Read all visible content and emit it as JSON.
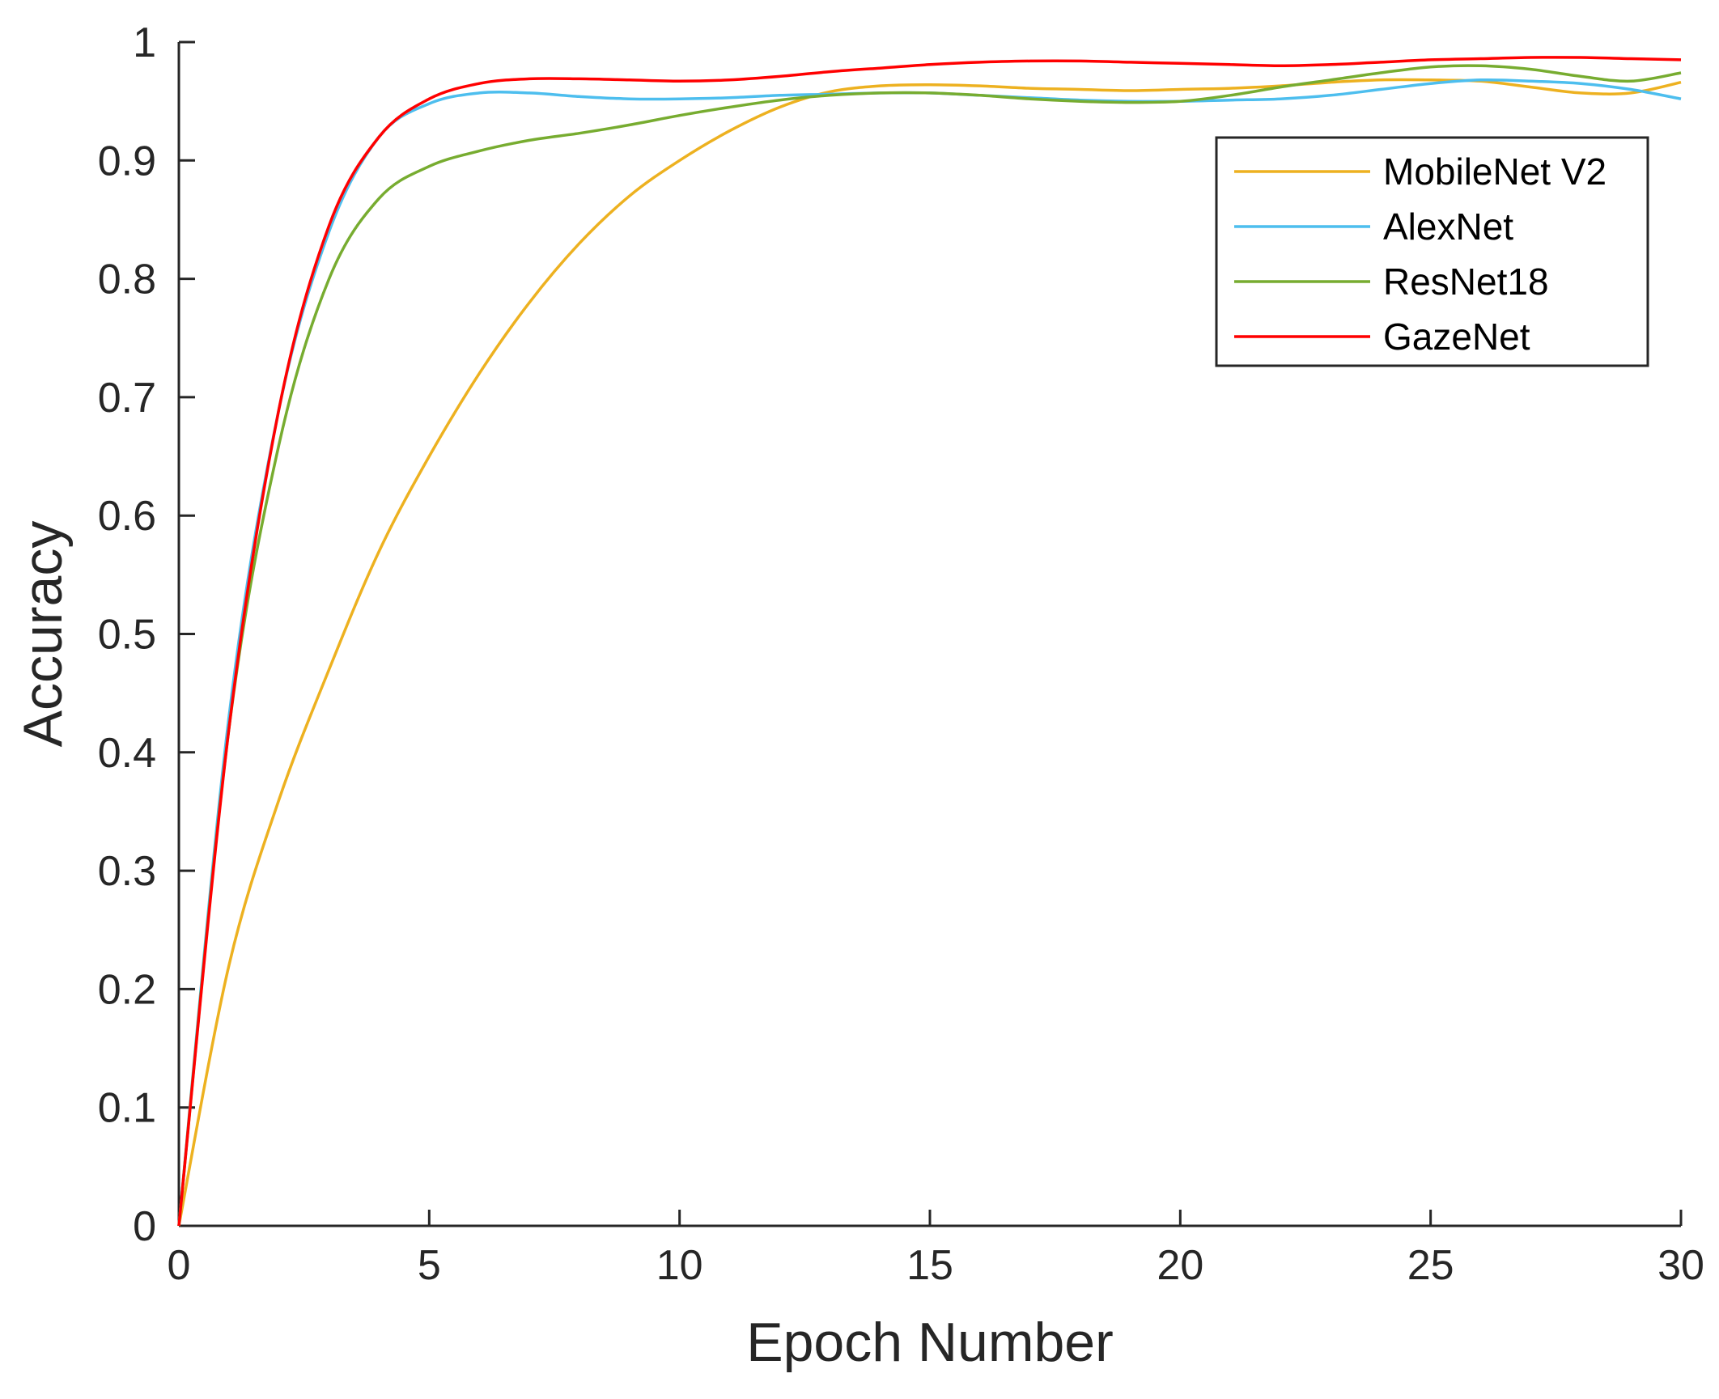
{
  "chart_data": {
    "type": "line",
    "title": "",
    "xlabel": "Epoch Number",
    "ylabel": "Accuracy",
    "xlim": [
      0,
      30
    ],
    "ylim": [
      0,
      1
    ],
    "xticks": [
      "0",
      "5",
      "10",
      "15",
      "20",
      "25",
      "30"
    ],
    "yticks": [
      "0",
      "0.1",
      "0.2",
      "0.3",
      "0.4",
      "0.5",
      "0.6",
      "0.7",
      "0.8",
      "0.9",
      "1"
    ],
    "grid": false,
    "legend_position": "top-right",
    "series": [
      {
        "name": "MobileNet V2",
        "color": "#EDB120",
        "points": [
          [
            0,
            0
          ],
          [
            1,
            0.22
          ],
          [
            2,
            0.36
          ],
          [
            3,
            0.47
          ],
          [
            4,
            0.57
          ],
          [
            5,
            0.65
          ],
          [
            6,
            0.72
          ],
          [
            7,
            0.78
          ],
          [
            8,
            0.83
          ],
          [
            9,
            0.87
          ],
          [
            10,
            0.9
          ],
          [
            11,
            0.925
          ],
          [
            12,
            0.945
          ],
          [
            13,
            0.958
          ],
          [
            14,
            0.963
          ],
          [
            15,
            0.964
          ],
          [
            16,
            0.963
          ],
          [
            17,
            0.961
          ],
          [
            18,
            0.96
          ],
          [
            19,
            0.959
          ],
          [
            20,
            0.96
          ],
          [
            21,
            0.961
          ],
          [
            22,
            0.963
          ],
          [
            23,
            0.966
          ],
          [
            24,
            0.968
          ],
          [
            25,
            0.968
          ],
          [
            26,
            0.967
          ],
          [
            27,
            0.962
          ],
          [
            28,
            0.957
          ],
          [
            29,
            0.957
          ],
          [
            30,
            0.966
          ]
        ]
      },
      {
        "name": "AlexNet",
        "color": "#4DBEEE",
        "points": [
          [
            0,
            0
          ],
          [
            1,
            0.43
          ],
          [
            2,
            0.69
          ],
          [
            3,
            0.84
          ],
          [
            4,
            0.92
          ],
          [
            5,
            0.948
          ],
          [
            6,
            0.957
          ],
          [
            7,
            0.957
          ],
          [
            8,
            0.954
          ],
          [
            9,
            0.952
          ],
          [
            10,
            0.952
          ],
          [
            11,
            0.953
          ],
          [
            12,
            0.955
          ],
          [
            13,
            0.956
          ],
          [
            14,
            0.957
          ],
          [
            15,
            0.957
          ],
          [
            16,
            0.955
          ],
          [
            17,
            0.953
          ],
          [
            18,
            0.951
          ],
          [
            19,
            0.95
          ],
          [
            20,
            0.95
          ],
          [
            21,
            0.951
          ],
          [
            22,
            0.952
          ],
          [
            23,
            0.955
          ],
          [
            24,
            0.96
          ],
          [
            25,
            0.965
          ],
          [
            26,
            0.968
          ],
          [
            27,
            0.967
          ],
          [
            28,
            0.965
          ],
          [
            29,
            0.96
          ],
          [
            30,
            0.952
          ]
        ]
      },
      {
        "name": "ResNet18",
        "color": "#77AC30",
        "points": [
          [
            0,
            0
          ],
          [
            1,
            0.42
          ],
          [
            2,
            0.66
          ],
          [
            3,
            0.8
          ],
          [
            4,
            0.868
          ],
          [
            5,
            0.895
          ],
          [
            6,
            0.908
          ],
          [
            7,
            0.917
          ],
          [
            8,
            0.923
          ],
          [
            9,
            0.93
          ],
          [
            10,
            0.938
          ],
          [
            11,
            0.945
          ],
          [
            12,
            0.951
          ],
          [
            13,
            0.955
          ],
          [
            14,
            0.957
          ],
          [
            15,
            0.957
          ],
          [
            16,
            0.955
          ],
          [
            17,
            0.952
          ],
          [
            18,
            0.95
          ],
          [
            19,
            0.949
          ],
          [
            20,
            0.95
          ],
          [
            21,
            0.955
          ],
          [
            22,
            0.962
          ],
          [
            23,
            0.968
          ],
          [
            24,
            0.974
          ],
          [
            25,
            0.979
          ],
          [
            26,
            0.98
          ],
          [
            27,
            0.977
          ],
          [
            28,
            0.971
          ],
          [
            29,
            0.967
          ],
          [
            30,
            0.974
          ]
        ]
      },
      {
        "name": "GazeNet",
        "color": "#FF0000",
        "points": [
          [
            0,
            0
          ],
          [
            1,
            0.42
          ],
          [
            2,
            0.69
          ],
          [
            3,
            0.845
          ],
          [
            4,
            0.92
          ],
          [
            5,
            0.952
          ],
          [
            6,
            0.965
          ],
          [
            7,
            0.969
          ],
          [
            8,
            0.969
          ],
          [
            9,
            0.968
          ],
          [
            10,
            0.967
          ],
          [
            11,
            0.968
          ],
          [
            12,
            0.971
          ],
          [
            13,
            0.975
          ],
          [
            14,
            0.978
          ],
          [
            15,
            0.981
          ],
          [
            16,
            0.983
          ],
          [
            17,
            0.984
          ],
          [
            18,
            0.984
          ],
          [
            19,
            0.983
          ],
          [
            20,
            0.982
          ],
          [
            21,
            0.981
          ],
          [
            22,
            0.98
          ],
          [
            23,
            0.981
          ],
          [
            24,
            0.983
          ],
          [
            25,
            0.985
          ],
          [
            26,
            0.986
          ],
          [
            27,
            0.987
          ],
          [
            28,
            0.987
          ],
          [
            29,
            0.986
          ],
          [
            30,
            0.985
          ]
        ]
      }
    ]
  }
}
